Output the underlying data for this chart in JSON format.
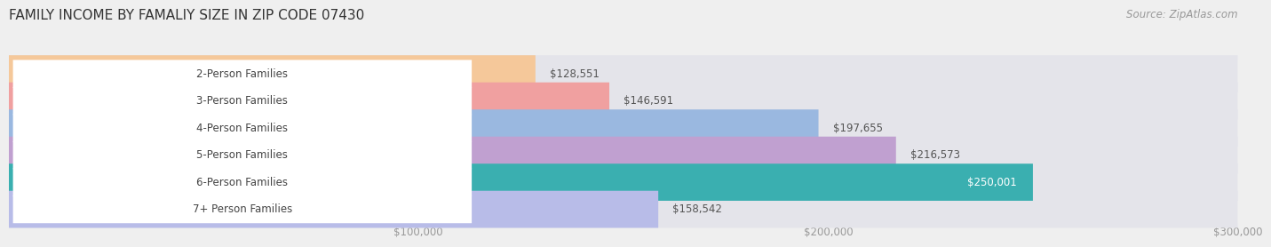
{
  "title": "FAMILY INCOME BY FAMALIY SIZE IN ZIP CODE 07430",
  "source": "Source: ZipAtlas.com",
  "categories": [
    "2-Person Families",
    "3-Person Families",
    "4-Person Families",
    "5-Person Families",
    "6-Person Families",
    "7+ Person Families"
  ],
  "values": [
    128551,
    146591,
    197655,
    216573,
    250001,
    158542
  ],
  "bar_colors": [
    "#f5c89a",
    "#f0a0a0",
    "#9ab8e0",
    "#c0a0d0",
    "#3aafb0",
    "#b8bce8"
  ],
  "value_white": [
    false,
    false,
    false,
    false,
    true,
    false
  ],
  "xlim": [
    0,
    300000
  ],
  "xtick_vals": [
    100000,
    200000,
    300000
  ],
  "xticklabels": [
    "$100,000",
    "$200,000",
    "$300,000"
  ],
  "bg_color": "#efefef",
  "bar_bg_color": "#e4e4ea",
  "title_fontsize": 11,
  "bar_height": 0.72,
  "label_fontsize": 8.5,
  "value_fontsize": 8.5,
  "source_fontsize": 8.5
}
